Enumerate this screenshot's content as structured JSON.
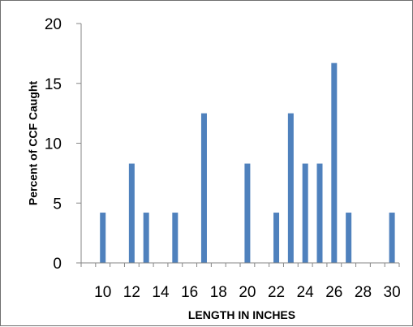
{
  "chart_data": {
    "type": "bar",
    "xlabel": "LENGTH IN INCHES",
    "ylabel": "Percent of CCF Caught",
    "title": "",
    "ylim": [
      0,
      20
    ],
    "xlim": [
      9,
      30
    ],
    "y_ticks": [
      "0",
      "5",
      "10",
      "15",
      "20"
    ],
    "x_ticks": [
      "10",
      "12",
      "14",
      "16",
      "18",
      "20",
      "22",
      "24",
      "26",
      "28",
      "30"
    ],
    "grid": "none",
    "legend": "none",
    "bar_color": "#4f81bd",
    "points": [
      {
        "x": 10,
        "y": 4.2
      },
      {
        "x": 12,
        "y": 8.3
      },
      {
        "x": 13,
        "y": 4.2
      },
      {
        "x": 15,
        "y": 4.2
      },
      {
        "x": 17,
        "y": 12.5
      },
      {
        "x": 20,
        "y": 8.3
      },
      {
        "x": 22,
        "y": 4.2
      },
      {
        "x": 23,
        "y": 12.5
      },
      {
        "x": 24,
        "y": 8.3
      },
      {
        "x": 25,
        "y": 8.3
      },
      {
        "x": 26,
        "y": 16.7
      },
      {
        "x": 27,
        "y": 4.2
      },
      {
        "x": 30,
        "y": 4.2
      }
    ]
  }
}
